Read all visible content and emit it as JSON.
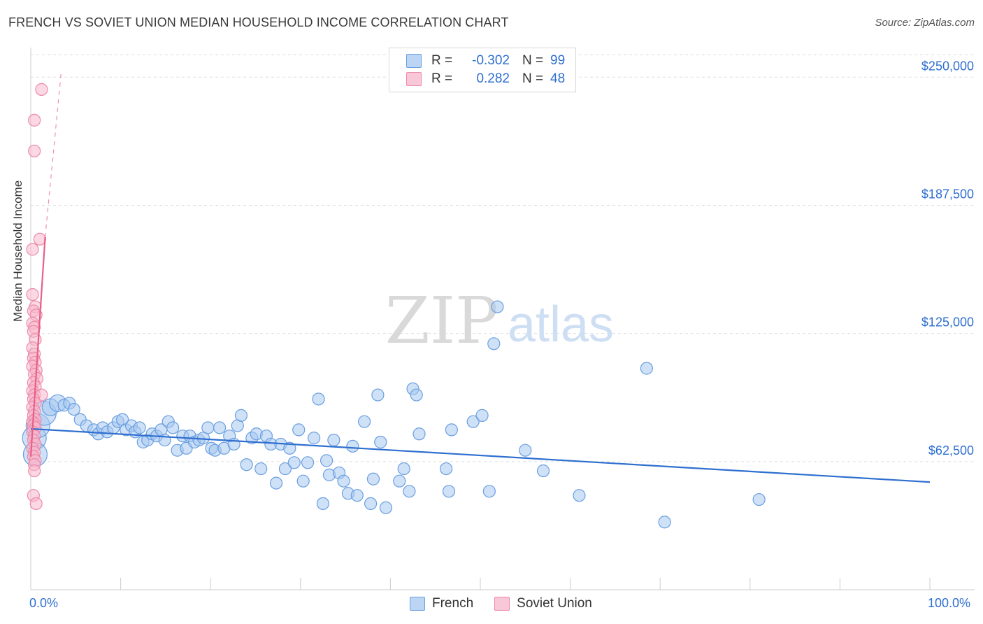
{
  "title": "FRENCH VS SOVIET UNION MEDIAN HOUSEHOLD INCOME CORRELATION CHART",
  "source": "Source: ZipAtlas.com",
  "watermark": {
    "zip": "ZIP",
    "atlas": "atlas"
  },
  "legend": {
    "r_label": "R =",
    "n_label": "N =",
    "rows": [
      {
        "name": "French",
        "r": "-0.302",
        "n": "99",
        "color": "#a8c8f0"
      },
      {
        "name": "Soviet Union",
        "r": "0.282",
        "n": "48",
        "color": "#f7b8cc"
      }
    ]
  },
  "bottom_legend": [
    "French",
    "Soviet Union"
  ],
  "x_axis": {
    "min_label": "0.0%",
    "max_label": "100.0%"
  },
  "colors": {
    "french_fill": "#a8c8f0",
    "french_stroke": "#6a9fe0",
    "french_line": "#2f6fd0",
    "soviet_fill": "#f7b8cc",
    "soviet_stroke": "#ee8aa9",
    "soviet_line": "#e8608a",
    "axis_text": "#2f6fd0",
    "grid": "#dddddd"
  },
  "chart_data": {
    "type": "scatter",
    "ylabel": "Median Household Income",
    "xlim": [
      0,
      100
    ],
    "ylim": [
      0,
      260000
    ],
    "y_ticks": [
      {
        "value": 62500,
        "label": "$62,500"
      },
      {
        "value": 125000,
        "label": "$125,000"
      },
      {
        "value": 187500,
        "label": "$187,500"
      },
      {
        "value": 250000,
        "label": "$250,000"
      }
    ],
    "grid": true,
    "legend_position": "top-center",
    "series": [
      {
        "name": "French",
        "trend": {
          "x": [
            0,
            100
          ],
          "y": [
            78500,
            52500
          ],
          "style": "solid"
        },
        "points": [
          [
            0.4,
            74000,
            3
          ],
          [
            0.5,
            66000,
            3
          ],
          [
            0.8,
            80000,
            3
          ],
          [
            1.5,
            86000,
            3
          ],
          [
            2.2,
            89000,
            2
          ],
          [
            3.0,
            91000,
            2
          ],
          [
            3.7,
            90000,
            1
          ],
          [
            4.3,
            91000,
            1
          ],
          [
            4.8,
            88000,
            1
          ],
          [
            5.5,
            83000,
            1
          ],
          [
            6.2,
            80000,
            1
          ],
          [
            7.0,
            78000,
            1
          ],
          [
            7.5,
            76000,
            1
          ],
          [
            8.0,
            79000,
            1
          ],
          [
            8.5,
            77000,
            1
          ],
          [
            9.2,
            79000,
            1
          ],
          [
            9.7,
            82000,
            1
          ],
          [
            10.2,
            83000,
            1
          ],
          [
            10.6,
            78000,
            1
          ],
          [
            11.2,
            80000,
            1
          ],
          [
            11.6,
            77000,
            1
          ],
          [
            12.1,
            79000,
            1
          ],
          [
            12.5,
            72000,
            1
          ],
          [
            13.0,
            73000,
            1
          ],
          [
            13.5,
            76000,
            1
          ],
          [
            14.0,
            75000,
            1
          ],
          [
            14.5,
            78000,
            1
          ],
          [
            14.9,
            73000,
            1
          ],
          [
            15.3,
            82000,
            1
          ],
          [
            15.8,
            79000,
            1
          ],
          [
            16.3,
            68000,
            1
          ],
          [
            16.9,
            75000,
            1
          ],
          [
            17.3,
            69000,
            1
          ],
          [
            17.7,
            75000,
            1
          ],
          [
            18.2,
            72000,
            1
          ],
          [
            18.7,
            73000,
            1
          ],
          [
            19.2,
            74000,
            1
          ],
          [
            19.7,
            79000,
            1
          ],
          [
            20.1,
            69000,
            1
          ],
          [
            20.5,
            68000,
            1
          ],
          [
            21.0,
            79000,
            1
          ],
          [
            21.5,
            69000,
            1
          ],
          [
            22.1,
            75000,
            1
          ],
          [
            22.6,
            71000,
            1
          ],
          [
            23.0,
            80000,
            1
          ],
          [
            23.4,
            85000,
            1
          ],
          [
            24.0,
            61000,
            1
          ],
          [
            24.6,
            74000,
            1
          ],
          [
            25.1,
            76000,
            1
          ],
          [
            25.6,
            59000,
            1
          ],
          [
            26.2,
            75000,
            1
          ],
          [
            26.7,
            71000,
            1
          ],
          [
            27.3,
            52000,
            1
          ],
          [
            27.8,
            71000,
            1
          ],
          [
            28.3,
            59000,
            1
          ],
          [
            28.8,
            69000,
            1
          ],
          [
            29.3,
            62000,
            1
          ],
          [
            29.8,
            78000,
            1
          ],
          [
            30.3,
            53000,
            1
          ],
          [
            30.8,
            62000,
            1
          ],
          [
            31.5,
            74000,
            1
          ],
          [
            32.0,
            93000,
            1
          ],
          [
            32.5,
            42000,
            1
          ],
          [
            32.9,
            63000,
            1
          ],
          [
            33.2,
            56000,
            1
          ],
          [
            33.7,
            73000,
            1
          ],
          [
            34.3,
            57000,
            1
          ],
          [
            34.8,
            53000,
            1
          ],
          [
            35.3,
            47000,
            1
          ],
          [
            35.8,
            70000,
            1
          ],
          [
            36.3,
            46000,
            1
          ],
          [
            37.1,
            82000,
            1
          ],
          [
            37.8,
            42000,
            1
          ],
          [
            38.1,
            54000,
            1
          ],
          [
            38.6,
            95000,
            1
          ],
          [
            38.9,
            72000,
            1
          ],
          [
            39.5,
            40000,
            1
          ],
          [
            41.0,
            53000,
            1
          ],
          [
            41.5,
            59000,
            1
          ],
          [
            42.1,
            48000,
            1
          ],
          [
            42.5,
            98000,
            1
          ],
          [
            42.9,
            95000,
            1
          ],
          [
            43.2,
            76000,
            1
          ],
          [
            46.2,
            59000,
            1
          ],
          [
            46.5,
            48000,
            1
          ],
          [
            46.8,
            78000,
            1
          ],
          [
            49.2,
            82000,
            1
          ],
          [
            50.2,
            85000,
            1
          ],
          [
            51.5,
            120000,
            1
          ],
          [
            51.9,
            138000,
            1
          ],
          [
            51.0,
            48000,
            1
          ],
          [
            55.0,
            68000,
            1
          ],
          [
            57.0,
            58000,
            1
          ],
          [
            61.0,
            46000,
            1
          ],
          [
            68.5,
            108000,
            1
          ],
          [
            70.5,
            33000,
            1
          ],
          [
            81.0,
            44000,
            1
          ]
        ]
      },
      {
        "name": "Soviet Union",
        "trend": {
          "x": [
            0,
            1.6
          ],
          "y": [
            65000,
            172000
          ],
          "style": "solid",
          "dashed_extension": {
            "x": [
              1.6,
              3.4
            ],
            "y": [
              172000,
              253000
            ]
          }
        },
        "points": [
          [
            1.2,
            244000,
            1
          ],
          [
            0.4,
            229000,
            1
          ],
          [
            0.4,
            214000,
            1
          ],
          [
            1.0,
            171000,
            1
          ],
          [
            0.2,
            166000,
            1
          ],
          [
            0.2,
            144000,
            1
          ],
          [
            0.5,
            138000,
            1
          ],
          [
            0.3,
            136000,
            1
          ],
          [
            0.6,
            134000,
            1
          ],
          [
            0.2,
            130000,
            1
          ],
          [
            0.4,
            128000,
            1
          ],
          [
            0.3,
            126000,
            1
          ],
          [
            0.5,
            122000,
            1
          ],
          [
            0.2,
            118000,
            1
          ],
          [
            0.4,
            115000,
            1
          ],
          [
            0.3,
            113000,
            1
          ],
          [
            0.5,
            111000,
            1
          ],
          [
            0.2,
            109000,
            1
          ],
          [
            0.6,
            107000,
            1
          ],
          [
            0.4,
            105000,
            1
          ],
          [
            0.7,
            103000,
            1
          ],
          [
            0.3,
            101000,
            1
          ],
          [
            0.5,
            99000,
            1
          ],
          [
            0.2,
            97000,
            1
          ],
          [
            0.4,
            95000,
            1
          ],
          [
            1.2,
            95000,
            1
          ],
          [
            0.3,
            93000,
            1
          ],
          [
            0.5,
            91000,
            1
          ],
          [
            0.2,
            89000,
            1
          ],
          [
            0.4,
            87000,
            1
          ],
          [
            0.3,
            85000,
            1
          ],
          [
            0.5,
            83000,
            1
          ],
          [
            0.2,
            82000,
            1
          ],
          [
            0.4,
            81000,
            1
          ],
          [
            0.3,
            80000,
            1
          ],
          [
            0.5,
            79000,
            1
          ],
          [
            0.2,
            77000,
            1
          ],
          [
            0.4,
            75000,
            1
          ],
          [
            0.3,
            73000,
            1
          ],
          [
            0.5,
            71000,
            1
          ],
          [
            0.2,
            69000,
            1
          ],
          [
            0.4,
            67000,
            1
          ],
          [
            0.3,
            65000,
            1
          ],
          [
            0.5,
            63000,
            1
          ],
          [
            0.4,
            61000,
            1
          ],
          [
            0.4,
            58000,
            1
          ],
          [
            0.3,
            46000,
            1
          ],
          [
            0.6,
            42000,
            1
          ]
        ]
      }
    ]
  }
}
